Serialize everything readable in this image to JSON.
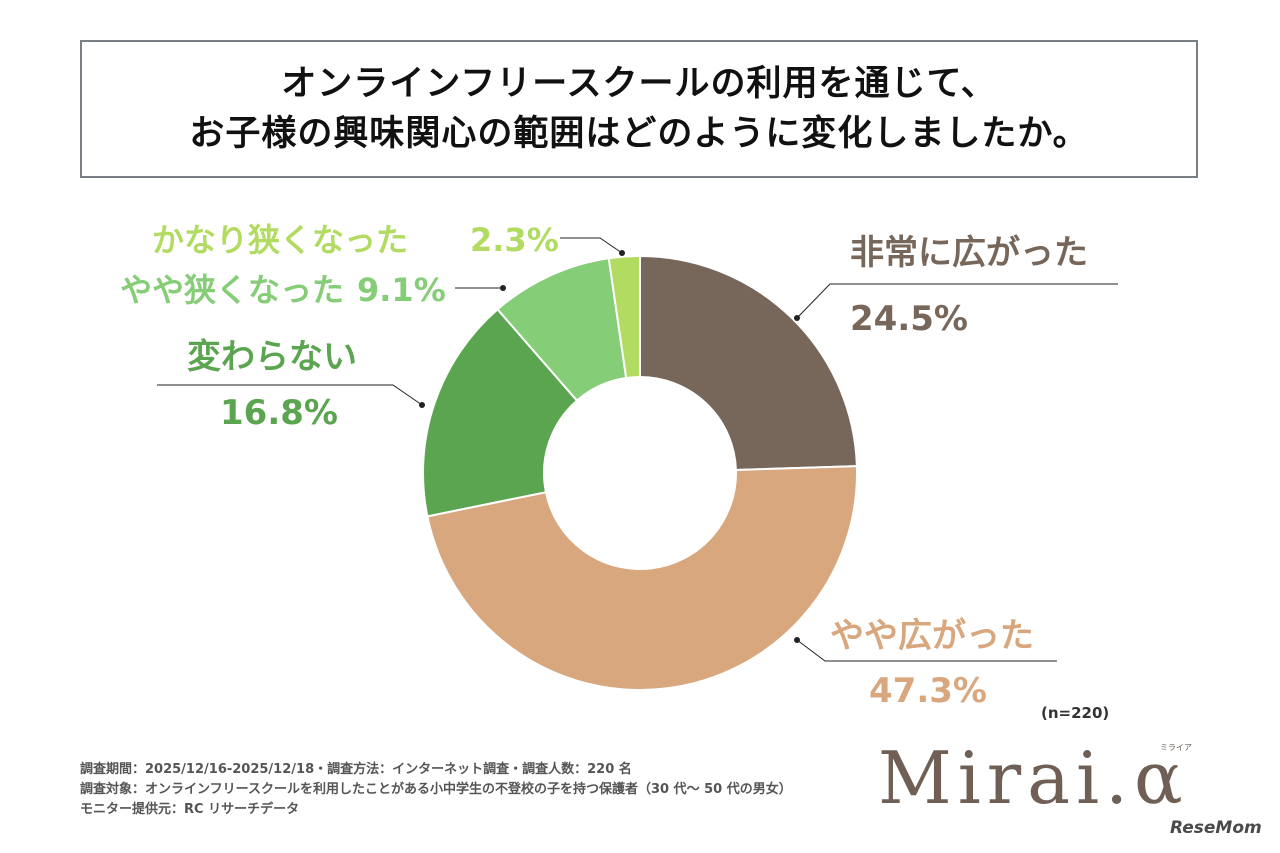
{
  "title": {
    "line1": "オンラインフリースクールの利用を通じて、",
    "line2": "お子様の興味関心の範囲はどのように変化しましたか。"
  },
  "chart_data": {
    "type": "pie",
    "donut": true,
    "slices": [
      {
        "label": "非常に広がった",
        "value": 24.5,
        "display": "24.5%",
        "color": "#77665a"
      },
      {
        "label": "やや広がった",
        "value": 47.3,
        "display": "47.3%",
        "color": "#d8a77d"
      },
      {
        "label": "変わらない",
        "value": 16.8,
        "display": "16.8%",
        "color": "#5ca550"
      },
      {
        "label": "やや狭くなった",
        "value": 9.1,
        "display": "9.1%",
        "color": "#86cd78"
      },
      {
        "label": "かなり狭くなった",
        "value": 2.3,
        "display": "2.3%",
        "color": "#b2db62"
      }
    ]
  },
  "n_note": "(n=220)",
  "footer": {
    "line1": "調査期間：2025/12/16-2025/12/18・調査方法：インターネット調査・調査人数：220 名",
    "line2": "調査対象：オンラインフリースクールを利用したことがある小中学生の不登校の子を持つ保護者（30 代～ 50 代の男女）",
    "line3": "モニター提供元：RC リサーチデータ"
  },
  "logo": {
    "text": "Mirai.α",
    "small": "ミライア"
  },
  "watermark": "ReseMom"
}
